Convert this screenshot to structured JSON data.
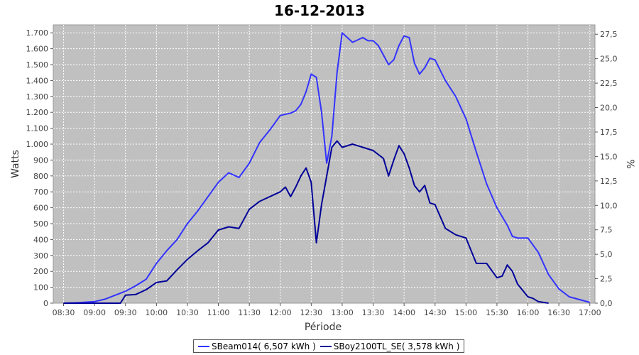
{
  "chart_data": {
    "type": "line",
    "title": "16-12-2013",
    "xlabel": "Période",
    "ylabel": "Watts",
    "y2label": "%",
    "ylim": [
      0,
      1750
    ],
    "y2lim": [
      0,
      28.46
    ],
    "xlim": [
      "08:20",
      "17:05"
    ],
    "grid": true,
    "legend_position": "bottom",
    "x_ticks": [
      "08:30",
      "09:00",
      "09:30",
      "10:00",
      "10:30",
      "11:00",
      "11:30",
      "12:00",
      "12:30",
      "13:00",
      "13:30",
      "14:00",
      "14:30",
      "15:00",
      "15:30",
      "16:00",
      "16:30",
      "17:00"
    ],
    "y_ticks": [
      0,
      100,
      200,
      300,
      400,
      500,
      600,
      700,
      800,
      900,
      1000,
      1100,
      1200,
      1300,
      1400,
      1500,
      1600,
      1700
    ],
    "y_tick_labels": [
      "0",
      "100",
      "200",
      "300",
      "400",
      "500",
      "600",
      "700",
      "800",
      "900",
      "1.000",
      "1.100",
      "1.200",
      "1.300",
      "1.400",
      "1.500",
      "1.600",
      "1.700"
    ],
    "y2_ticks": [
      0,
      2.5,
      5,
      7.5,
      10,
      12.5,
      15,
      17.5,
      20,
      22.5,
      25,
      27.5
    ],
    "y2_tick_labels": [
      "0,0",
      "2,5",
      "5,0",
      "7,5",
      "10,0",
      "12,5",
      "15,0",
      "17,5",
      "20,0",
      "22,5",
      "25,0",
      "27,5"
    ],
    "series": [
      {
        "name": "SBeam014( 6,507 kWh )",
        "color": "#3333ff",
        "x": [
          "08:30",
          "08:45",
          "09:00",
          "09:10",
          "09:20",
          "09:30",
          "09:40",
          "09:50",
          "10:00",
          "10:10",
          "10:20",
          "10:30",
          "10:40",
          "10:50",
          "11:00",
          "11:10",
          "11:20",
          "11:30",
          "11:40",
          "11:50",
          "12:00",
          "12:10",
          "12:15",
          "12:20",
          "12:25",
          "12:30",
          "12:35",
          "12:40",
          "12:45",
          "12:50",
          "12:55",
          "13:00",
          "13:10",
          "13:20",
          "13:25",
          "13:30",
          "13:35",
          "13:40",
          "13:45",
          "13:50",
          "13:55",
          "14:00",
          "14:05",
          "14:10",
          "14:15",
          "14:20",
          "14:25",
          "14:30",
          "14:40",
          "14:50",
          "15:00",
          "15:10",
          "15:20",
          "15:30",
          "15:40",
          "15:45",
          "15:50",
          "16:00",
          "16:10",
          "16:20",
          "16:30",
          "16:40",
          "17:00"
        ],
        "values": [
          0,
          3,
          10,
          25,
          50,
          75,
          110,
          150,
          250,
          330,
          400,
          500,
          580,
          670,
          760,
          820,
          790,
          880,
          1010,
          1090,
          1180,
          1195,
          1210,
          1250,
          1330,
          1440,
          1420,
          1200,
          880,
          1050,
          1450,
          1700,
          1640,
          1670,
          1650,
          1650,
          1620,
          1560,
          1500,
          1530,
          1620,
          1680,
          1670,
          1510,
          1440,
          1480,
          1540,
          1530,
          1400,
          1300,
          1160,
          950,
          750,
          600,
          490,
          420,
          410,
          410,
          320,
          180,
          90,
          40,
          5
        ]
      },
      {
        "name": "SBoy2100TL_SE( 3,578 kWh )",
        "color": "#000099",
        "x": [
          "08:30",
          "09:00",
          "09:25",
          "09:30",
          "09:40",
          "09:50",
          "10:00",
          "10:10",
          "10:20",
          "10:30",
          "10:40",
          "10:50",
          "11:00",
          "11:10",
          "11:20",
          "11:30",
          "11:40",
          "11:50",
          "12:00",
          "12:05",
          "12:10",
          "12:15",
          "12:20",
          "12:25",
          "12:30",
          "12:35",
          "12:40",
          "12:50",
          "12:55",
          "13:00",
          "13:10",
          "13:20",
          "13:30",
          "13:40",
          "13:45",
          "13:50",
          "13:55",
          "14:00",
          "14:05",
          "14:10",
          "14:15",
          "14:20",
          "14:25",
          "14:30",
          "14:40",
          "14:50",
          "15:00",
          "15:10",
          "15:20",
          "15:30",
          "15:35",
          "15:40",
          "15:45",
          "15:50",
          "15:55",
          "16:00",
          "16:05",
          "16:10",
          "16:20"
        ],
        "values": [
          0,
          0,
          0,
          50,
          55,
          85,
          130,
          140,
          210,
          275,
          330,
          380,
          460,
          480,
          470,
          590,
          640,
          670,
          700,
          730,
          670,
          730,
          800,
          850,
          760,
          380,
          620,
          980,
          1020,
          980,
          1000,
          980,
          960,
          910,
          800,
          900,
          990,
          940,
          850,
          740,
          700,
          740,
          630,
          620,
          470,
          430,
          410,
          250,
          250,
          160,
          170,
          240,
          200,
          120,
          80,
          40,
          30,
          10,
          0
        ]
      }
    ]
  }
}
